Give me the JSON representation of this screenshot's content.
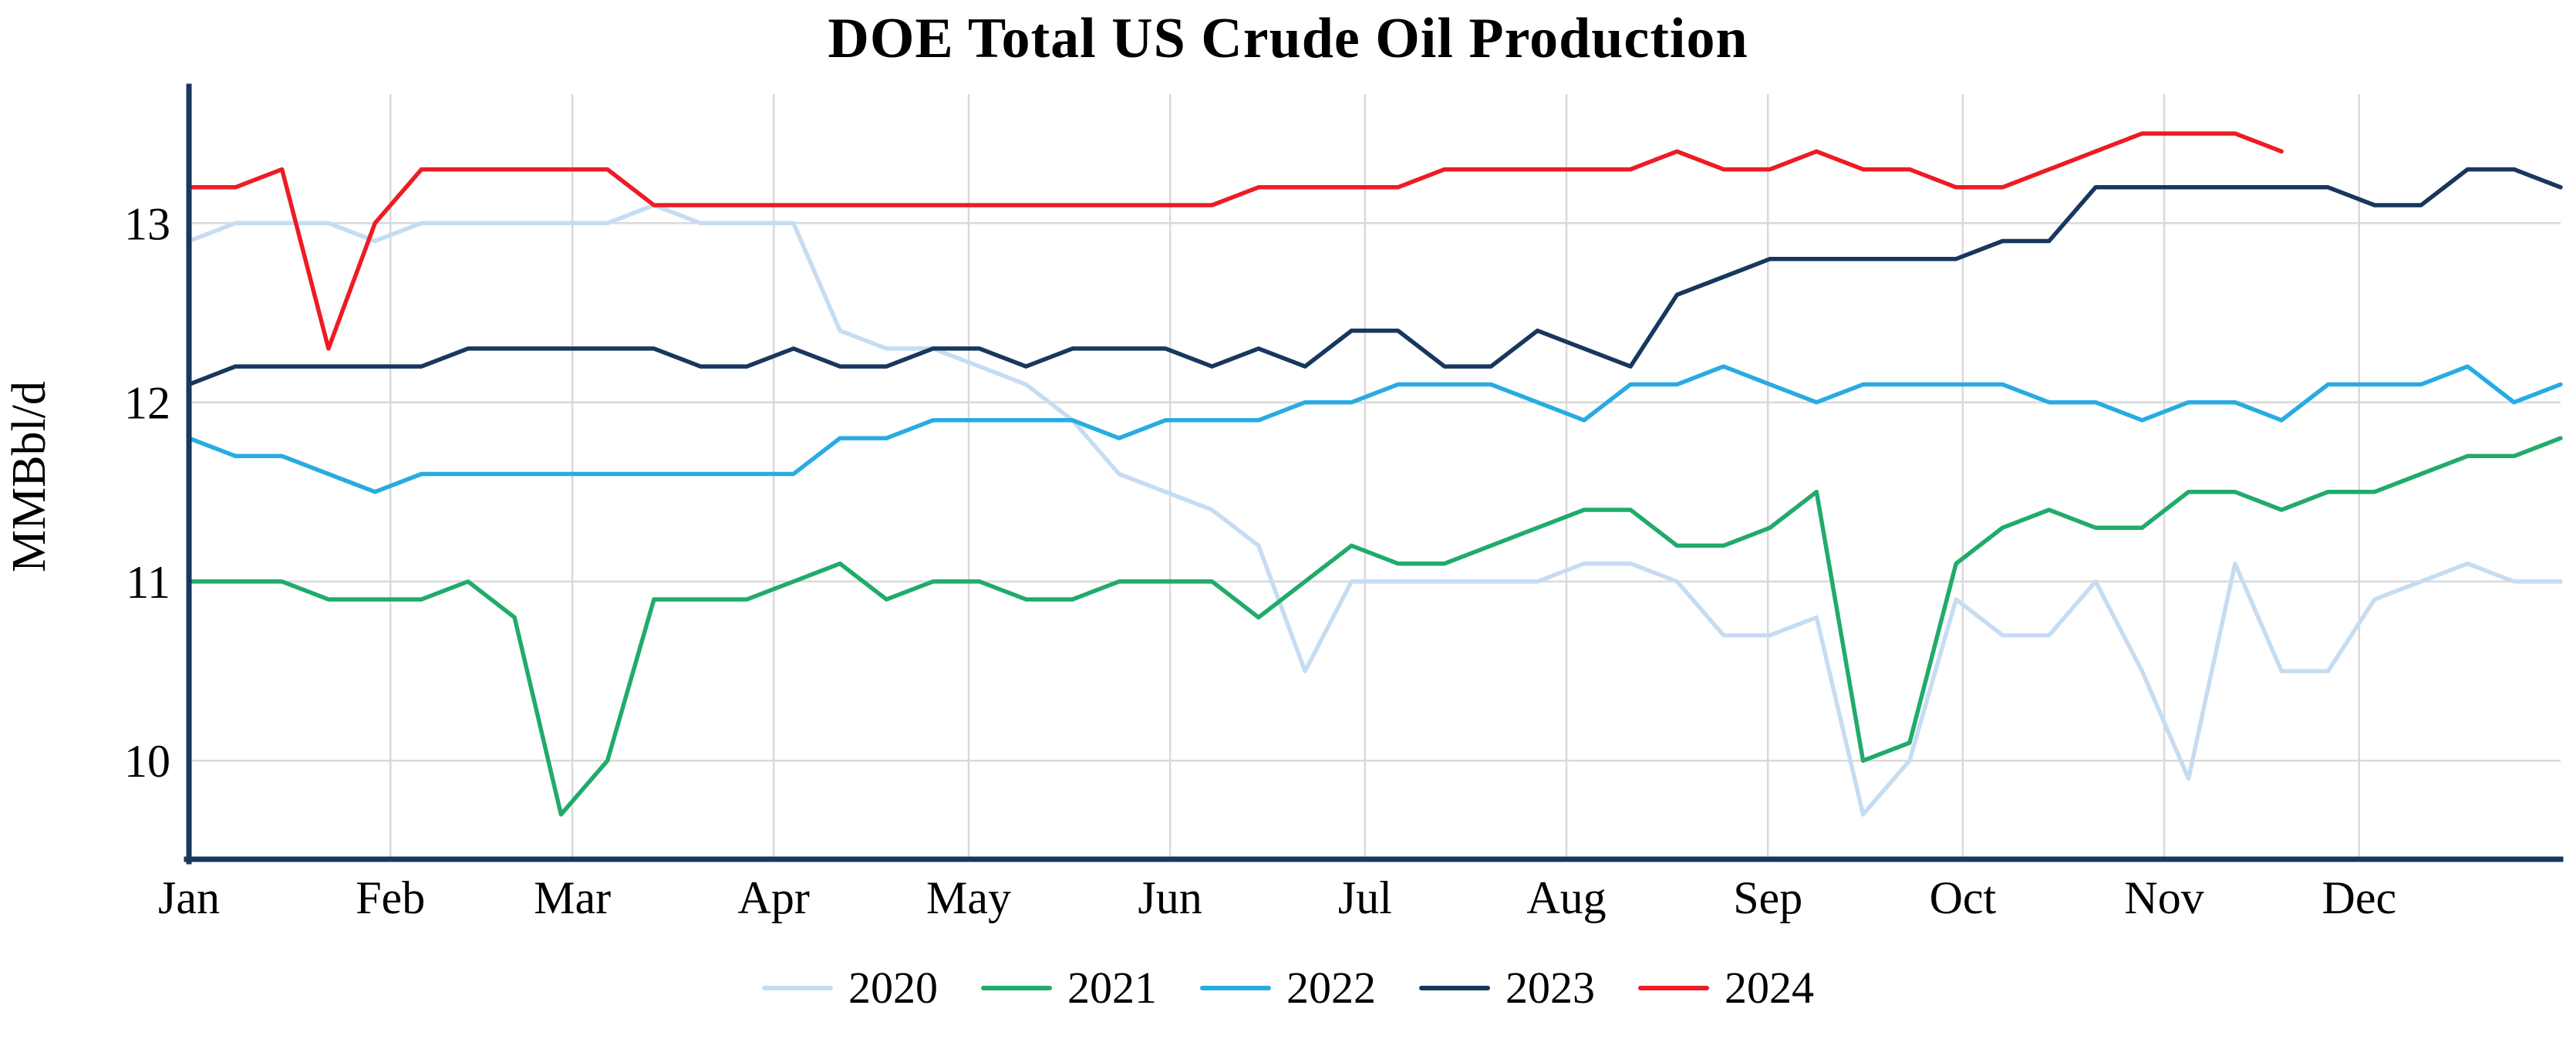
{
  "chart_data": {
    "type": "line",
    "title": "DOE Total US Crude Oil Production",
    "xlabel": "",
    "ylabel": "MMBbl/d",
    "ylim": [
      9.45,
      13.72
    ],
    "yticks": [
      10,
      11,
      12,
      13
    ],
    "grid": true,
    "legend_position": "bottom",
    "x_unit": "week-of-year",
    "points_per_year": 52,
    "days_in_year": 365,
    "month_labels": [
      "Jan",
      "Feb",
      "Mar",
      "Apr",
      "May",
      "Jun",
      "Jul",
      "Aug",
      "Sep",
      "Oct",
      "Nov",
      "Dec"
    ],
    "month_start_days": [
      0,
      31,
      59,
      90,
      120,
      151,
      181,
      212,
      243,
      273,
      304,
      334
    ],
    "series": [
      {
        "name": "2020",
        "color": "#c6dcf1",
        "values": [
          12.9,
          13.0,
          13.0,
          13.0,
          12.9,
          13.0,
          13.0,
          13.0,
          13.0,
          13.0,
          13.1,
          13.0,
          13.0,
          13.0,
          12.4,
          12.3,
          12.3,
          12.2,
          12.1,
          11.9,
          11.6,
          11.5,
          11.4,
          11.2,
          10.5,
          11.0,
          11.0,
          11.0,
          11.0,
          11.0,
          11.1,
          11.1,
          11.0,
          10.7,
          10.7,
          10.8,
          9.7,
          10.0,
          10.9,
          10.7,
          10.7,
          11.0,
          10.5,
          9.9,
          11.1,
          10.5,
          10.5,
          10.9,
          11.0,
          11.1,
          11.0,
          11.0
        ]
      },
      {
        "name": "2021",
        "color": "#21ab6b",
        "values": [
          11.0,
          11.0,
          11.0,
          10.9,
          10.9,
          10.9,
          11.0,
          10.8,
          9.7,
          10.0,
          10.9,
          10.9,
          10.9,
          11.0,
          11.1,
          10.9,
          11.0,
          11.0,
          10.9,
          10.9,
          11.0,
          11.0,
          11.0,
          10.8,
          11.0,
          11.2,
          11.1,
          11.1,
          11.2,
          11.3,
          11.4,
          11.4,
          11.2,
          11.2,
          11.3,
          11.5,
          10.0,
          10.1,
          11.1,
          11.3,
          11.4,
          11.3,
          11.3,
          11.5,
          11.5,
          11.4,
          11.5,
          11.5,
          11.6,
          11.7,
          11.7,
          11.8
        ]
      },
      {
        "name": "2022",
        "color": "#29abe2",
        "values": [
          11.8,
          11.7,
          11.7,
          11.6,
          11.5,
          11.6,
          11.6,
          11.6,
          11.6,
          11.6,
          11.6,
          11.6,
          11.6,
          11.6,
          11.8,
          11.8,
          11.9,
          11.9,
          11.9,
          11.9,
          11.8,
          11.9,
          11.9,
          11.9,
          12.0,
          12.0,
          12.1,
          12.1,
          12.1,
          12.0,
          11.9,
          12.1,
          12.1,
          12.2,
          12.1,
          12.0,
          12.1,
          12.1,
          12.1,
          12.1,
          12.0,
          12.0,
          11.9,
          12.0,
          12.0,
          11.9,
          12.1,
          12.1,
          12.1,
          12.2,
          12.0,
          12.1
        ]
      },
      {
        "name": "2023",
        "color": "#17375e",
        "values": [
          12.1,
          12.2,
          12.2,
          12.2,
          12.2,
          12.2,
          12.3,
          12.3,
          12.3,
          12.3,
          12.3,
          12.2,
          12.2,
          12.3,
          12.2,
          12.2,
          12.3,
          12.3,
          12.2,
          12.3,
          12.3,
          12.3,
          12.2,
          12.3,
          12.2,
          12.4,
          12.4,
          12.2,
          12.2,
          12.4,
          12.3,
          12.2,
          12.6,
          12.7,
          12.8,
          12.8,
          12.8,
          12.8,
          12.8,
          12.9,
          12.9,
          13.2,
          13.2,
          13.2,
          13.2,
          13.2,
          13.2,
          13.1,
          13.1,
          13.3,
          13.3,
          13.2
        ]
      },
      {
        "name": "2024",
        "color": "#ed1c24",
        "values": [
          13.2,
          13.2,
          13.3,
          12.3,
          13.0,
          13.3,
          13.3,
          13.3,
          13.3,
          13.3,
          13.1,
          13.1,
          13.1,
          13.1,
          13.1,
          13.1,
          13.1,
          13.1,
          13.1,
          13.1,
          13.1,
          13.1,
          13.1,
          13.2,
          13.2,
          13.2,
          13.2,
          13.3,
          13.3,
          13.3,
          13.3,
          13.3,
          13.4,
          13.3,
          13.3,
          13.4,
          13.3,
          13.3,
          13.2,
          13.2,
          13.3,
          13.4,
          13.5,
          13.5,
          13.5,
          13.4
        ]
      }
    ],
    "style": {
      "grid_color": "#d9d9d9",
      "axis_color": "#17375e",
      "background": "#ffffff",
      "text_color": "#000000"
    }
  }
}
